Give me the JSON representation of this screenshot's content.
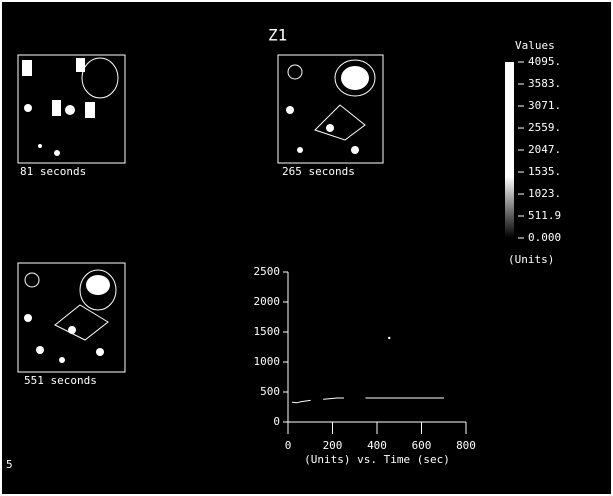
{
  "title": "Z1",
  "corner_label": "5",
  "panels": [
    {
      "label": "81 seconds"
    },
    {
      "label": "265 seconds"
    },
    {
      "label": "551 seconds"
    }
  ],
  "colorbar": {
    "title": "Values",
    "units": "(Units)",
    "zlim": [
      0,
      4095
    ],
    "ticks": [
      {
        "value": 4095,
        "label": "4095."
      },
      {
        "value": 3583,
        "label": "3583."
      },
      {
        "value": 3071,
        "label": "3071."
      },
      {
        "value": 2559,
        "label": "2559."
      },
      {
        "value": 2047,
        "label": "2047."
      },
      {
        "value": 1535,
        "label": "1535."
      },
      {
        "value": 1023,
        "label": "1023."
      },
      {
        "value": 511.9,
        "label": "511.9"
      },
      {
        "value": 0,
        "label": "0.000"
      }
    ]
  },
  "chart_data": {
    "type": "line",
    "x_label": "(Units) vs. Time (sec)",
    "x": [
      20,
      40,
      60,
      80,
      100,
      130,
      160,
      190,
      220,
      250,
      300,
      455,
      310,
      350,
      400,
      450,
      500,
      550,
      600,
      650,
      700
    ],
    "values": [
      330,
      320,
      340,
      350,
      360,
      null,
      380,
      390,
      400,
      400,
      null,
      1400,
      null,
      400,
      400,
      400,
      400,
      400,
      400,
      400,
      400
    ],
    "color": "#ffffff",
    "xlim": [
      0,
      800
    ],
    "xticks": [
      0,
      200,
      400,
      600,
      800
    ],
    "ylim": [
      0,
      2500
    ],
    "yticks": [
      0,
      500,
      1000,
      1500,
      2000,
      2500
    ]
  }
}
